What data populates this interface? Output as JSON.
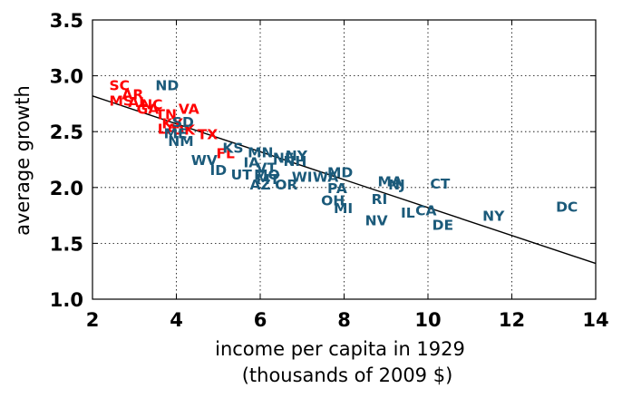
{
  "chart_data": {
    "type": "scatter",
    "xlabel": "income per capita in 1929",
    "xlabel2": "(thousands of 2009 $)",
    "ylabel": "average growth",
    "xlim": [
      2,
      14
    ],
    "ylim": [
      1.0,
      3.5
    ],
    "xticks": [
      "2",
      "4",
      "6",
      "8",
      "10",
      "12",
      "14"
    ],
    "yticks": [
      "1.0",
      "1.5",
      "2.0",
      "2.5",
      "3.0",
      "3.5"
    ],
    "grid": true,
    "trend_line": {
      "x": [
        2,
        14
      ],
      "y": [
        2.82,
        1.32
      ]
    },
    "colors": {
      "red": "#ff0000",
      "blue": "#1b5a7a"
    },
    "points": [
      {
        "label": "SC",
        "x": 2.4,
        "y": 2.92,
        "color": "red"
      },
      {
        "label": "AR",
        "x": 2.7,
        "y": 2.84,
        "color": "red"
      },
      {
        "label": "MS",
        "x": 2.4,
        "y": 2.78,
        "color": "red"
      },
      {
        "label": "AL",
        "x": 2.85,
        "y": 2.77,
        "color": "red"
      },
      {
        "label": "NC",
        "x": 3.15,
        "y": 2.75,
        "color": "red"
      },
      {
        "label": "GA",
        "x": 3.05,
        "y": 2.71,
        "color": "red"
      },
      {
        "label": "TN",
        "x": 3.5,
        "y": 2.66,
        "color": "red"
      },
      {
        "label": "VA",
        "x": 4.05,
        "y": 2.71,
        "color": "red"
      },
      {
        "label": "KY",
        "x": 3.65,
        "y": 2.58,
        "color": "red"
      },
      {
        "label": "LA",
        "x": 3.55,
        "y": 2.53,
        "color": "red"
      },
      {
        "label": "OK",
        "x": 3.9,
        "y": 2.52,
        "color": "red"
      },
      {
        "label": "TX",
        "x": 4.5,
        "y": 2.48,
        "color": "red"
      },
      {
        "label": "FL",
        "x": 4.95,
        "y": 2.31,
        "color": "red"
      },
      {
        "label": "ND",
        "x": 3.5,
        "y": 2.92,
        "color": "blue"
      },
      {
        "label": "SD",
        "x": 3.9,
        "y": 2.59,
        "color": "blue"
      },
      {
        "label": "ME",
        "x": 3.7,
        "y": 2.49,
        "color": "blue"
      },
      {
        "label": "NM",
        "x": 3.8,
        "y": 2.42,
        "color": "blue"
      },
      {
        "label": "WV",
        "x": 4.35,
        "y": 2.25,
        "color": "blue"
      },
      {
        "label": "ID",
        "x": 4.8,
        "y": 2.16,
        "color": "blue"
      },
      {
        "label": "KS",
        "x": 5.1,
        "y": 2.36,
        "color": "blue"
      },
      {
        "label": "MN",
        "x": 5.7,
        "y": 2.32,
        "color": "blue"
      },
      {
        "label": "IA",
        "x": 5.6,
        "y": 2.23,
        "color": "blue"
      },
      {
        "label": "VT",
        "x": 5.9,
        "y": 2.18,
        "color": "blue"
      },
      {
        "label": "NE",
        "x": 6.3,
        "y": 2.27,
        "color": "blue"
      },
      {
        "label": "NY",
        "x": 6.6,
        "y": 2.29,
        "color": "blue"
      },
      {
        "label": "NH",
        "x": 6.55,
        "y": 2.24,
        "color": "blue"
      },
      {
        "label": "UT",
        "x": 5.3,
        "y": 2.12,
        "color": "blue"
      },
      {
        "label": "MO",
        "x": 5.85,
        "y": 2.12,
        "color": "blue"
      },
      {
        "label": "MT",
        "x": 5.9,
        "y": 2.08,
        "color": "blue"
      },
      {
        "label": "WI",
        "x": 6.75,
        "y": 2.1,
        "color": "blue"
      },
      {
        "label": "WA",
        "x": 7.25,
        "y": 2.1,
        "color": "blue"
      },
      {
        "label": "AZ",
        "x": 5.75,
        "y": 2.03,
        "color": "blue"
      },
      {
        "label": "OR",
        "x": 6.35,
        "y": 2.03,
        "color": "blue"
      },
      {
        "label": "MD",
        "x": 7.6,
        "y": 2.14,
        "color": "blue"
      },
      {
        "label": "PA",
        "x": 7.6,
        "y": 2.0,
        "color": "blue"
      },
      {
        "label": "OH",
        "x": 7.45,
        "y": 1.89,
        "color": "blue"
      },
      {
        "label": "MI",
        "x": 7.75,
        "y": 1.82,
        "color": "blue"
      },
      {
        "label": "MA",
        "x": 8.8,
        "y": 2.06,
        "color": "blue"
      },
      {
        "label": "NJ",
        "x": 9.05,
        "y": 2.03,
        "color": "blue"
      },
      {
        "label": "RI",
        "x": 8.65,
        "y": 1.9,
        "color": "blue"
      },
      {
        "label": "NV",
        "x": 8.5,
        "y": 1.71,
        "color": "blue"
      },
      {
        "label": "IL",
        "x": 9.35,
        "y": 1.78,
        "color": "blue"
      },
      {
        "label": "CA",
        "x": 9.7,
        "y": 1.8,
        "color": "blue"
      },
      {
        "label": "CT",
        "x": 10.05,
        "y": 2.04,
        "color": "blue"
      },
      {
        "label": "DE",
        "x": 10.1,
        "y": 1.67,
        "color": "blue"
      },
      {
        "label": "NY",
        "x": 11.3,
        "y": 1.75,
        "color": "blue"
      },
      {
        "label": "DC",
        "x": 13.05,
        "y": 1.83,
        "color": "blue"
      }
    ]
  }
}
